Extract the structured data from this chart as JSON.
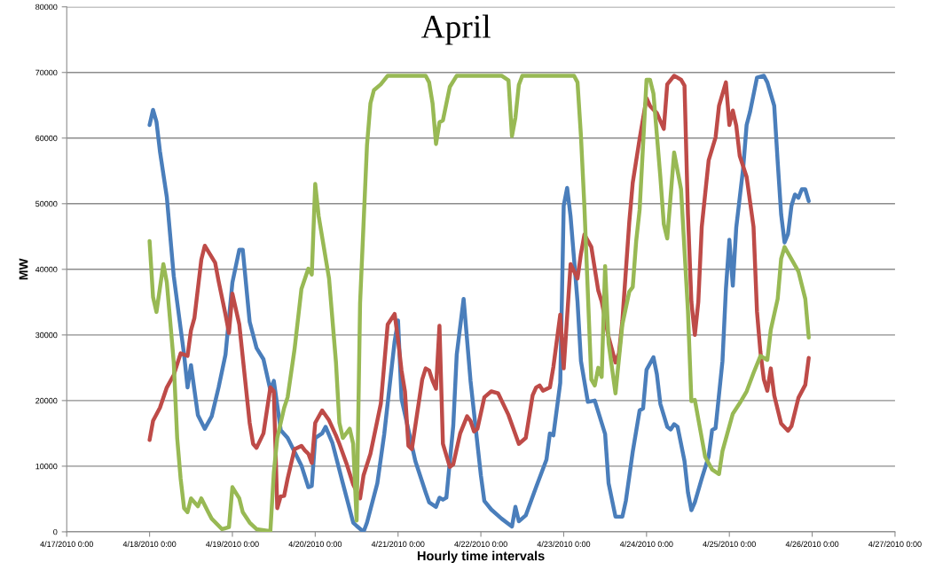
{
  "chart_data": {
    "type": "line",
    "title": "April",
    "xlabel": "Hourly time intervals",
    "ylabel": "MW",
    "xlim": [
      "2010-04-17T00:00",
      "2010-04-27T00:00"
    ],
    "xticks": [
      {
        "value": "2010-04-17T00:00",
        "label": "4/17/2010 0:00"
      },
      {
        "value": "2010-04-18T00:00",
        "label": "4/18/2010 0:00"
      },
      {
        "value": "2010-04-19T00:00",
        "label": "4/19/2010 0:00"
      },
      {
        "value": "2010-04-20T00:00",
        "label": "4/20/2010 0:00"
      },
      {
        "value": "2010-04-21T00:00",
        "label": "4/21/2010 0:00"
      },
      {
        "value": "2010-04-22T00:00",
        "label": "4/22/2010 0:00"
      },
      {
        "value": "2010-04-23T00:00",
        "label": "4/23/2010 0:00"
      },
      {
        "value": "2010-04-24T00:00",
        "label": "4/24/2010 0:00"
      },
      {
        "value": "2010-04-25T00:00",
        "label": "4/25/2010 0:00"
      },
      {
        "value": "2010-04-26T00:00",
        "label": "4/26/2010 0:00"
      },
      {
        "value": "2010-04-27T00:00",
        "label": "4/27/2010 0:00"
      }
    ],
    "ylim": [
      0,
      80000
    ],
    "yticks": [
      0,
      10000,
      20000,
      30000,
      40000,
      50000,
      60000,
      70000,
      80000
    ],
    "grid": "y",
    "marker": "none",
    "line_style": "solid",
    "series": [
      {
        "color": "#4a7ebb",
        "x": [
          "2010-04-18T00:00",
          "2010-04-18T01:00",
          "2010-04-18T02:00",
          "2010-04-18T03:00",
          "2010-04-18T05:00",
          "2010-04-18T07:00",
          "2010-04-18T10:00",
          "2010-04-18T11:00",
          "2010-04-18T12:00",
          "2010-04-18T14:00",
          "2010-04-18T16:00",
          "2010-04-18T18:00",
          "2010-04-18T20:00",
          "2010-04-18T22:00",
          "2010-04-19T00:00",
          "2010-04-19T02:00",
          "2010-04-19T03:00",
          "2010-04-19T05:00",
          "2010-04-19T07:00",
          "2010-04-19T09:00",
          "2010-04-19T11:00",
          "2010-04-19T12:00",
          "2010-04-19T14:00",
          "2010-04-19T16:00",
          "2010-04-19T20:00",
          "2010-04-19T22:00",
          "2010-04-19T23:00",
          "2010-04-20T00:00",
          "2010-04-20T02:00",
          "2010-04-20T03:00",
          "2010-04-20T05:00",
          "2010-04-20T08:00",
          "2010-04-20T11:00",
          "2010-04-20T12:00",
          "2010-04-20T14:00",
          "2010-04-20T15:00",
          "2010-04-20T18:00",
          "2010-04-20T20:00",
          "2010-04-20T23:00",
          "2010-04-21T00:00",
          "2010-04-21T01:00",
          "2010-04-21T05:00",
          "2010-04-21T08:00",
          "2010-04-21T09:00",
          "2010-04-21T11:00",
          "2010-04-21T12:00",
          "2010-04-21T13:00",
          "2010-04-21T14:00",
          "2010-04-21T16:00",
          "2010-04-21T17:00",
          "2010-04-21T19:00",
          "2010-04-21T21:00",
          "2010-04-22T00:00",
          "2010-04-22T01:00",
          "2010-04-22T03:00",
          "2010-04-22T06:00",
          "2010-04-22T09:00",
          "2010-04-22T10:00",
          "2010-04-22T11:00",
          "2010-04-22T13:00",
          "2010-04-22T16:00",
          "2010-04-22T19:00",
          "2010-04-22T20:00",
          "2010-04-22T21:00",
          "2010-04-22T23:00",
          "2010-04-23T00:00",
          "2010-04-23T01:00",
          "2010-04-23T02:00",
          "2010-04-23T04:00",
          "2010-04-23T05:00",
          "2010-04-23T07:00",
          "2010-04-23T09:00",
          "2010-04-23T12:00",
          "2010-04-23T13:00",
          "2010-04-23T15:00",
          "2010-04-23T17:00",
          "2010-04-23T18:00",
          "2010-04-23T20:00",
          "2010-04-23T22:00",
          "2010-04-23T23:00",
          "2010-04-24T00:00",
          "2010-04-24T02:00",
          "2010-04-24T03:00",
          "2010-04-24T04:00",
          "2010-04-24T06:00",
          "2010-04-24T07:00",
          "2010-04-24T08:00",
          "2010-04-24T09:00",
          "2010-04-24T11:00",
          "2010-04-24T12:00",
          "2010-04-24T13:00",
          "2010-04-24T14:00",
          "2010-04-24T16:00",
          "2010-04-24T18:00",
          "2010-04-24T19:00",
          "2010-04-24T20:00",
          "2010-04-24T22:00",
          "2010-04-24T23:00",
          "2010-04-25T00:00",
          "2010-04-25T01:00",
          "2010-04-25T02:00",
          "2010-04-25T04:00",
          "2010-04-25T05:00",
          "2010-04-25T06:00",
          "2010-04-25T08:00",
          "2010-04-25T10:00",
          "2010-04-25T11:00",
          "2010-04-25T13:00",
          "2010-04-25T14:00",
          "2010-04-25T15:00",
          "2010-04-25T16:00",
          "2010-04-25T17:00",
          "2010-04-25T18:00",
          "2010-04-25T19:00",
          "2010-04-25T20:00",
          "2010-04-25T21:00",
          "2010-04-25T22:00",
          "2010-04-25T23:00"
        ],
        "values": [
          62000,
          64300,
          62500,
          58000,
          51000,
          39000,
          27000,
          22000,
          25400,
          17800,
          15700,
          17600,
          22000,
          27000,
          38000,
          43000,
          43000,
          32000,
          28000,
          26300,
          21600,
          23000,
          15500,
          14300,
          10100,
          6800,
          7000,
          14300,
          15000,
          16000,
          13500,
          7400,
          1400,
          900,
          0,
          1400,
          7400,
          14900,
          29000,
          32200,
          20300,
          10800,
          6000,
          4500,
          3800,
          5200,
          4900,
          5200,
          16200,
          27000,
          35500,
          23000,
          8600,
          4700,
          3400,
          2000,
          800,
          3800,
          1600,
          2500,
          6800,
          11000,
          15000,
          14700,
          22700,
          49700,
          52400,
          48000,
          35100,
          26000,
          19800,
          20000,
          14900,
          7400,
          2300,
          2300,
          4700,
          12200,
          18500,
          18800,
          24700,
          26600,
          24000,
          19500,
          16000,
          15600,
          16400,
          16000,
          10800,
          6000,
          3300,
          4500,
          8100,
          11500,
          15500,
          15800,
          26000,
          37000,
          44500,
          37500,
          46400,
          55400,
          62000,
          64000,
          69200,
          69500,
          68500,
          64900,
          56400,
          48400,
          44100,
          45400,
          49700,
          51400,
          50900,
          52200,
          52200,
          50400
        ]
      },
      {
        "color": "#be4b48",
        "x": [
          "2010-04-18T00:00",
          "2010-04-18T01:00",
          "2010-04-18T03:00",
          "2010-04-18T05:00",
          "2010-04-18T07:00",
          "2010-04-18T09:00",
          "2010-04-18T11:00",
          "2010-04-18T12:00",
          "2010-04-18T13:00",
          "2010-04-18T15:00",
          "2010-04-18T16:00",
          "2010-04-18T19:00",
          "2010-04-18T20:00",
          "2010-04-18T22:00",
          "2010-04-18T23:00",
          "2010-04-19T00:00",
          "2010-04-19T02:00",
          "2010-04-19T05:00",
          "2010-04-19T06:00",
          "2010-04-19T07:00",
          "2010-04-19T09:00",
          "2010-04-19T11:00",
          "2010-04-19T12:00",
          "2010-04-19T13:00",
          "2010-04-19T14:00",
          "2010-04-19T15:00",
          "2010-04-19T16:00",
          "2010-04-19T18:00",
          "2010-04-19T20:00",
          "2010-04-19T21:00",
          "2010-04-19T22:00",
          "2010-04-19T23:00",
          "2010-04-20T00:00",
          "2010-04-20T02:00",
          "2010-04-20T04:00",
          "2010-04-20T06:00",
          "2010-04-20T07:00",
          "2010-04-20T09:00",
          "2010-04-20T11:00",
          "2010-04-20T13:00",
          "2010-04-20T14:00",
          "2010-04-20T16:00",
          "2010-04-20T19:00",
          "2010-04-20T21:00",
          "2010-04-20T23:00",
          "2010-04-21T00:00",
          "2010-04-21T01:00",
          "2010-04-21T02:00",
          "2010-04-21T03:00",
          "2010-04-21T04:00",
          "2010-04-21T07:00",
          "2010-04-21T08:00",
          "2010-04-21T09:00",
          "2010-04-21T10:00",
          "2010-04-21T11:00",
          "2010-04-21T12:00",
          "2010-04-21T13:00",
          "2010-04-21T15:00",
          "2010-04-21T16:00",
          "2010-04-21T18:00",
          "2010-04-21T20:00",
          "2010-04-21T21:00",
          "2010-04-21T22:00",
          "2010-04-21T23:00",
          "2010-04-22T01:00",
          "2010-04-22T03:00",
          "2010-04-22T05:00",
          "2010-04-22T08:00",
          "2010-04-22T11:00",
          "2010-04-22T13:00",
          "2010-04-22T15:00",
          "2010-04-22T16:00",
          "2010-04-22T17:00",
          "2010-04-22T18:00",
          "2010-04-22T20:00",
          "2010-04-22T21:00",
          "2010-04-22T23:00",
          "2010-04-23T00:00",
          "2010-04-23T02:00",
          "2010-04-23T04:00",
          "2010-04-23T05:00",
          "2010-04-23T06:00",
          "2010-04-23T08:00",
          "2010-04-23T10:00",
          "2010-04-23T11:00",
          "2010-04-23T13:00",
          "2010-04-23T15:00",
          "2010-04-23T16:00",
          "2010-04-23T17:00",
          "2010-04-23T19:00",
          "2010-04-23T20:00",
          "2010-04-23T22:00",
          "2010-04-24T00:00",
          "2010-04-24T01:00",
          "2010-04-24T03:00",
          "2010-04-24T05:00",
          "2010-04-24T06:00",
          "2010-04-24T08:00",
          "2010-04-24T10:00",
          "2010-04-24T11:00",
          "2010-04-24T12:00",
          "2010-04-24T13:00",
          "2010-04-24T14:00",
          "2010-04-24T15:00",
          "2010-04-24T16:00",
          "2010-04-24T18:00",
          "2010-04-24T20:00",
          "2010-04-24T21:00",
          "2010-04-24T23:00",
          "2010-04-25T00:00",
          "2010-04-25T01:00",
          "2010-04-25T02:00",
          "2010-04-25T03:00",
          "2010-04-25T05:00",
          "2010-04-25T07:00",
          "2010-04-25T08:00",
          "2010-04-25T09:00",
          "2010-04-25T10:00",
          "2010-04-25T11:00",
          "2010-04-25T12:00",
          "2010-04-25T13:00",
          "2010-04-25T15:00",
          "2010-04-25T17:00",
          "2010-04-25T18:00",
          "2010-04-25T20:00",
          "2010-04-25T22:00",
          "2010-04-25T23:00"
        ],
        "values": [
          14000,
          16900,
          18900,
          22000,
          23900,
          27200,
          26800,
          30700,
          32600,
          41500,
          43600,
          41000,
          38200,
          33100,
          30300,
          36300,
          31600,
          16600,
          13400,
          12800,
          15000,
          22000,
          21400,
          3600,
          5400,
          5500,
          8100,
          12600,
          13100,
          12400,
          11900,
          10500,
          16600,
          18500,
          17000,
          14700,
          13400,
          10500,
          7200,
          5100,
          8600,
          11900,
          19500,
          31600,
          33200,
          29300,
          24600,
          21400,
          13100,
          12600,
          23200,
          24900,
          24600,
          23000,
          21800,
          31400,
          13400,
          9900,
          10300,
          15000,
          17600,
          16900,
          15300,
          15700,
          20500,
          21400,
          21100,
          17800,
          13400,
          14300,
          20800,
          22000,
          22300,
          21500,
          22000,
          25100,
          33100,
          24900,
          40800,
          38600,
          42400,
          45300,
          43400,
          36800,
          35100,
          29700,
          25800,
          27200,
          32200,
          47200,
          53200,
          59900,
          66100,
          64900,
          63800,
          61400,
          68200,
          69500,
          68900,
          68000,
          48400,
          35000,
          30000,
          35000,
          46500,
          56600,
          60100,
          64900,
          68500,
          62000,
          64200,
          61900,
          57300,
          54100,
          46500,
          33600,
          27400,
          23200,
          21500,
          24900,
          20800,
          16500,
          15400,
          16100,
          20400,
          22400,
          26500
        ]
      },
      {
        "color": "#98b954",
        "x": [
          "2010-04-18T00:00",
          "2010-04-18T01:00",
          "2010-04-18T02:00",
          "2010-04-18T04:00",
          "2010-04-18T05:00",
          "2010-04-18T07:00",
          "2010-04-18T08:00",
          "2010-04-18T09:00",
          "2010-04-18T10:00",
          "2010-04-18T11:00",
          "2010-04-18T12:00",
          "2010-04-18T14:00",
          "2010-04-18T15:00",
          "2010-04-18T17:00",
          "2010-04-18T18:00",
          "2010-04-18T21:00",
          "2010-04-18T23:00",
          "2010-04-19T00:00",
          "2010-04-19T02:00",
          "2010-04-19T03:00",
          "2010-04-19T05:00",
          "2010-04-19T07:00",
          "2010-04-19T11:00",
          "2010-04-19T12:00",
          "2010-04-19T13:00",
          "2010-04-19T15:00",
          "2010-04-19T16:00",
          "2010-04-19T18:00",
          "2010-04-19T20:00",
          "2010-04-19T22:00",
          "2010-04-19T23:00",
          "2010-04-20T00:00",
          "2010-04-20T01:00",
          "2010-04-20T04:00",
          "2010-04-20T06:00",
          "2010-04-20T07:00",
          "2010-04-20T08:00",
          "2010-04-20T10:00",
          "2010-04-20T11:00",
          "2010-04-20T12:00",
          "2010-04-20T13:00",
          "2010-04-20T15:00",
          "2010-04-20T16:00",
          "2010-04-20T17:00",
          "2010-04-20T19:00",
          "2010-04-20T21:00",
          "2010-04-21T08:00",
          "2010-04-21T09:00",
          "2010-04-21T10:00",
          "2010-04-21T11:00",
          "2010-04-21T12:00",
          "2010-04-21T13:00",
          "2010-04-21T15:00",
          "2010-04-21T17:00",
          "2010-04-22T06:00",
          "2010-04-22T08:00",
          "2010-04-22T09:00",
          "2010-04-22T10:00",
          "2010-04-22T11:00",
          "2010-04-22T12:00",
          "2010-04-23T03:00",
          "2010-04-23T04:00",
          "2010-04-23T05:00",
          "2010-04-23T06:00",
          "2010-04-23T08:00",
          "2010-04-23T09:00",
          "2010-04-23T10:00",
          "2010-04-23T11:00",
          "2010-04-23T12:00",
          "2010-04-23T13:00",
          "2010-04-23T15:00",
          "2010-04-23T17:00",
          "2010-04-23T19:00",
          "2010-04-23T20:00",
          "2010-04-23T21:00",
          "2010-04-23T22:00",
          "2010-04-24T00:00",
          "2010-04-24T01:00",
          "2010-04-24T02:00",
          "2010-04-24T04:00",
          "2010-04-24T05:00",
          "2010-04-24T06:00",
          "2010-04-24T08:00",
          "2010-04-24T10:00",
          "2010-04-24T12:00",
          "2010-04-24T13:00",
          "2010-04-24T14:00",
          "2010-04-24T17:00",
          "2010-04-24T19:00",
          "2010-04-24T21:00",
          "2010-04-24T22:00",
          "2010-04-25T01:00",
          "2010-04-25T03:00",
          "2010-04-25T05:00",
          "2010-04-25T07:00",
          "2010-04-25T09:00",
          "2010-04-25T11:00",
          "2010-04-25T12:00",
          "2010-04-25T14:00",
          "2010-04-25T15:00",
          "2010-04-25T16:00",
          "2010-04-25T20:00",
          "2010-04-25T22:00",
          "2010-04-25T23:00"
        ],
        "values": [
          44300,
          35800,
          33500,
          40800,
          38000,
          25900,
          14300,
          8100,
          3600,
          3000,
          5100,
          3900,
          5100,
          3000,
          2000,
          400,
          700,
          6800,
          5100,
          3000,
          1400,
          400,
          100,
          9000,
          14300,
          18900,
          20500,
          27800,
          37000,
          40100,
          39200,
          53000,
          48100,
          38600,
          25900,
          16600,
          14300,
          15700,
          13400,
          1700,
          34900,
          58900,
          65300,
          67300,
          68200,
          69500,
          69500,
          68500,
          65300,
          59100,
          62400,
          62700,
          67800,
          69500,
          69500,
          68800,
          60300,
          63100,
          68100,
          69500,
          69500,
          68500,
          60300,
          49500,
          23200,
          22300,
          25000,
          23600,
          40500,
          28800,
          21100,
          31600,
          36600,
          37300,
          44300,
          49100,
          68900,
          68900,
          66800,
          54100,
          46900,
          44700,
          57800,
          52200,
          33600,
          19900,
          20100,
          11400,
          9500,
          8800,
          12300,
          18000,
          19600,
          21400,
          24200,
          26800,
          26200,
          30800,
          35500,
          41600,
          43400,
          39700,
          35500,
          29600
        ]
      }
    ]
  }
}
